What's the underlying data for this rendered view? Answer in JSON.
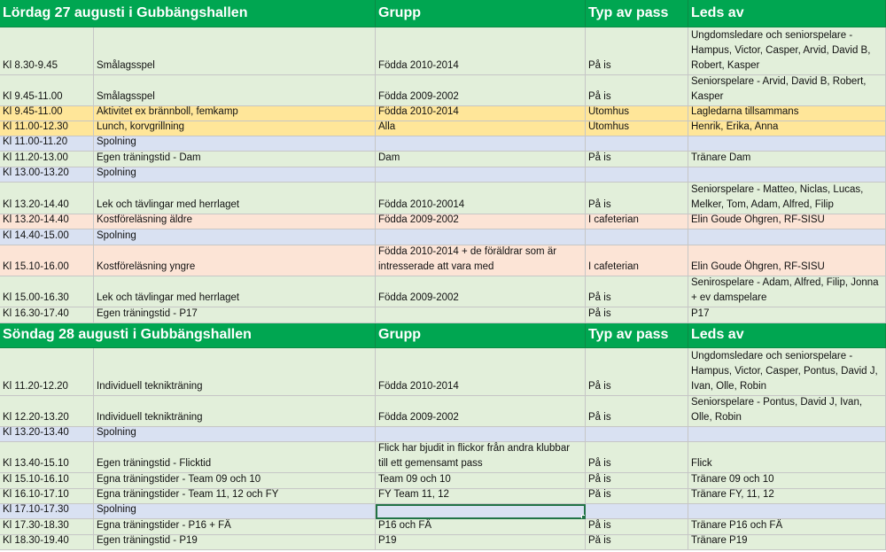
{
  "days": [
    {
      "header": {
        "title": "Lördag 27 augusti i Gubbängshallen",
        "grupp": "Grupp",
        "typ": "Typ av pass",
        "leds": "Leds av"
      },
      "rows": [
        {
          "color": "green",
          "h": 54,
          "tid": "Kl 8.30-9.45",
          "aktivitet": "Smålagsspel",
          "grupp": "Födda 2010-2014",
          "typ": "På is",
          "leds": "Ungdomsledare och seniorspelare - Hampus, Victor, Casper, Arvid, David B, Robert, Kasper"
        },
        {
          "color": "green",
          "h": 35,
          "tid": "Kl 9.45-11.00",
          "aktivitet": "Smålagsspel",
          "grupp": "Födda 2009-2002",
          "typ": "På is",
          "leds": "Seniorspelare - Arvid, David B, Robert, Kasper"
        },
        {
          "color": "yellow",
          "h": 17,
          "tid": "Kl 9.45-11.00",
          "aktivitet": "Aktivitet ex brännboll, femkamp",
          "grupp": "Födda 2010-2014",
          "typ": "Utomhus",
          "leds": "Lagledarna tillsammans"
        },
        {
          "color": "yellow",
          "h": 17,
          "tid": "Kl 11.00-12.30",
          "aktivitet": "Lunch, korvgrillning",
          "grupp": "Alla",
          "typ": "Utomhus",
          "leds": "Henrik, Erika, Anna"
        },
        {
          "color": "blue",
          "h": 17,
          "tid": "Kl 11.00-11.20",
          "aktivitet": "Spolning",
          "grupp": "",
          "typ": "",
          "leds": ""
        },
        {
          "color": "green",
          "h": 18,
          "tid": "Kl 11.20-13.00",
          "aktivitet": "Egen träningstid - Dam",
          "grupp": "Dam",
          "typ": "På is",
          "leds": "Tränare Dam"
        },
        {
          "color": "blue",
          "h": 17,
          "tid": "Kl 13.00-13.20",
          "aktivitet": "Spolning",
          "grupp": "",
          "typ": "",
          "leds": ""
        },
        {
          "color": "green",
          "h": 36,
          "tid": "Kl 13.20-14.40",
          "aktivitet": "Lek och tävlingar med herrlaget",
          "grupp": "Födda 2010-20014",
          "typ": "På is",
          "leds": "Seniorspelare - Matteo, Niclas, Lucas, Melker, Tom, Adam, Alfred, Filip"
        },
        {
          "color": "peach",
          "h": 17,
          "tid": "Kl 13.20-14.40",
          "aktivitet": "Kostföreläsning äldre",
          "grupp": "Födda 2009-2002",
          "typ": "I cafeterian",
          "leds": "Elin Goude Öhgren, RF-SISU"
        },
        {
          "color": "blue",
          "h": 18,
          "tid": "Kl 14.40-15.00",
          "aktivitet": "Spolning",
          "grupp": "",
          "typ": "",
          "leds": ""
        },
        {
          "color": "peach",
          "h": 35,
          "tid": "Kl 15.10-16.00",
          "aktivitet": "Kostföreläsning yngre",
          "grupp": "Födda 2010-2014 + de föräldrar som är intresserade att vara med",
          "typ": "I cafeterian",
          "leds": "Elin Goude Öhgren, RF-SISU"
        },
        {
          "color": "green",
          "h": 35,
          "tid": "Kl 15.00-16.30",
          "aktivitet": "Lek och tävlingar med herrlaget",
          "grupp": "Födda 2009-2002",
          "typ": "På is",
          "leds": "Senirospelare - Adam, Alfred, Filip, Jonna + ev damspelare"
        },
        {
          "color": "green",
          "h": 18,
          "tid": "Kl 16.30-17.40",
          "aktivitet": "Egen träningstid - P17",
          "grupp": "",
          "typ": "På is",
          "leds": "P17"
        }
      ]
    },
    {
      "header": {
        "title": "Söndag 28 augusti i Gubbängshallen",
        "grupp": "Grupp",
        "typ": "Typ av pass",
        "leds": "Leds av"
      },
      "rows": [
        {
          "color": "green",
          "h": 54,
          "tid": "Kl 11.20-12.20",
          "aktivitet": "Individuell teknikträning",
          "grupp": "Födda 2010-2014",
          "typ": "På is",
          "leds": "Ungdomsledare och seniorspelare - Hampus, Victor, Casper, Pontus, David J, Ivan, Olle, Robin"
        },
        {
          "color": "green",
          "h": 35,
          "tid": "Kl 12.20-13.20",
          "aktivitet": "Individuell teknikträning",
          "grupp": "Födda 2009-2002",
          "typ": "På is",
          "leds": "Seniorspelare - Pontus, David J, Ivan, Olle, Robin"
        },
        {
          "color": "blue",
          "h": 17,
          "tid": "Kl 13.20-13.40",
          "aktivitet": "Spolning",
          "grupp": "",
          "typ": "",
          "leds": ""
        },
        {
          "color": "green",
          "h": 35,
          "tid": "Kl 13.40-15.10",
          "aktivitet": "Egen träningstid - Flicktid",
          "grupp": "Flick har bjudit in flickor från andra klubbar till ett gemensamt pass",
          "typ": "På is",
          "leds": "Flick"
        },
        {
          "color": "green",
          "h": 18,
          "tid": "Kl 15.10-16.10",
          "aktivitet": "Egna träningstider - Team 09 och 10",
          "grupp": "Team 09 och 10",
          "typ": "På is",
          "leds": "Tränare 09 och 10"
        },
        {
          "color": "green",
          "h": 17,
          "tid": "Kl 16.10-17.10",
          "aktivitet": "Egna träningstider - Team 11, 12 och FY",
          "grupp": "FY Team 11, 12",
          "typ": "På is",
          "leds": "Tränare FY, 11, 12"
        },
        {
          "color": "blue",
          "h": 17,
          "tid": "Kl 17.10-17.30",
          "aktivitet": "Spolning",
          "grupp": "",
          "typ": "",
          "leds": "",
          "selected": true
        },
        {
          "color": "green",
          "h": 18,
          "tid": "Kl 17.30-18.30",
          "aktivitet": "Egna träningstider - P16 + FÄ",
          "grupp": "P16 och FÄ",
          "typ": "På is",
          "leds": "Tränare P16 och FÄ"
        },
        {
          "color": "green",
          "h": 17,
          "tid": "Kl 18.30-19.40",
          "aktivitet": "Egen träningstid - P19",
          "grupp": "P19",
          "typ": "På is",
          "leds": "Tränare P19"
        }
      ]
    }
  ]
}
